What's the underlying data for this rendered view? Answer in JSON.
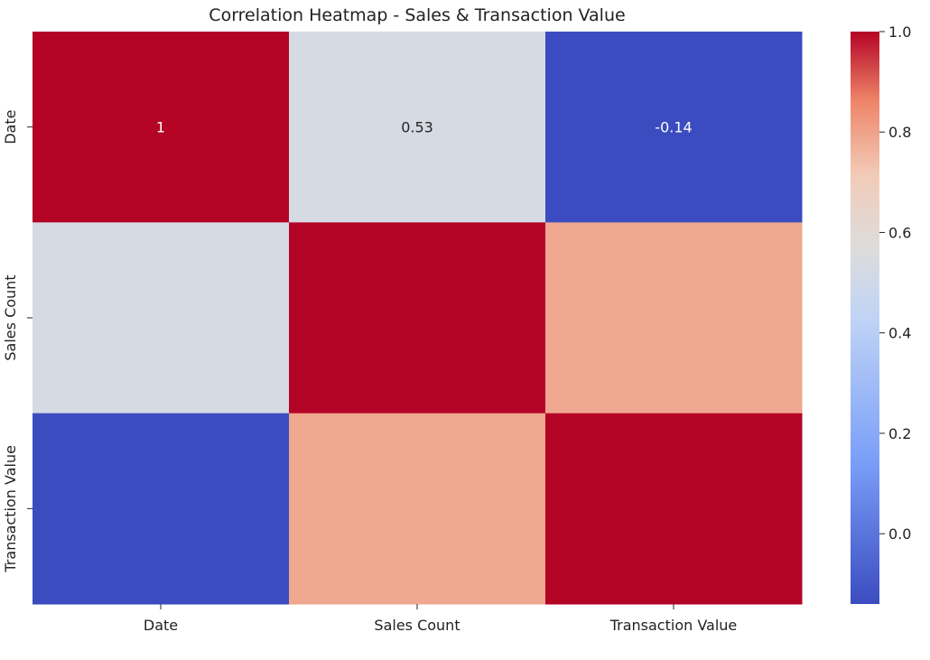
{
  "chart_data": {
    "type": "heatmap",
    "title": "Correlation Heatmap - Sales & Transaction Value",
    "row_labels": [
      "Date",
      "Sales Count",
      "Transaction Value"
    ],
    "col_labels": [
      "Date",
      "Sales Count",
      "Transaction Value"
    ],
    "values": [
      [
        1.0,
        0.53,
        -0.14
      ],
      [
        0.53,
        1.0,
        0.79
      ],
      [
        -0.14,
        0.79,
        1.0
      ]
    ],
    "annotations": [
      [
        "1",
        "0.53",
        "-0.14"
      ],
      [
        "",
        "",
        ""
      ],
      [
        "",
        "",
        ""
      ]
    ],
    "colormap": "coolwarm",
    "vmin": -0.14,
    "vmax": 1.0,
    "colorbar_ticks": [
      0.0,
      0.2,
      0.4,
      0.6,
      0.8,
      1.0
    ],
    "colorbar_tick_labels": [
      "0.0",
      "0.2",
      "0.4",
      "0.6",
      "0.8",
      "1.0"
    ]
  }
}
